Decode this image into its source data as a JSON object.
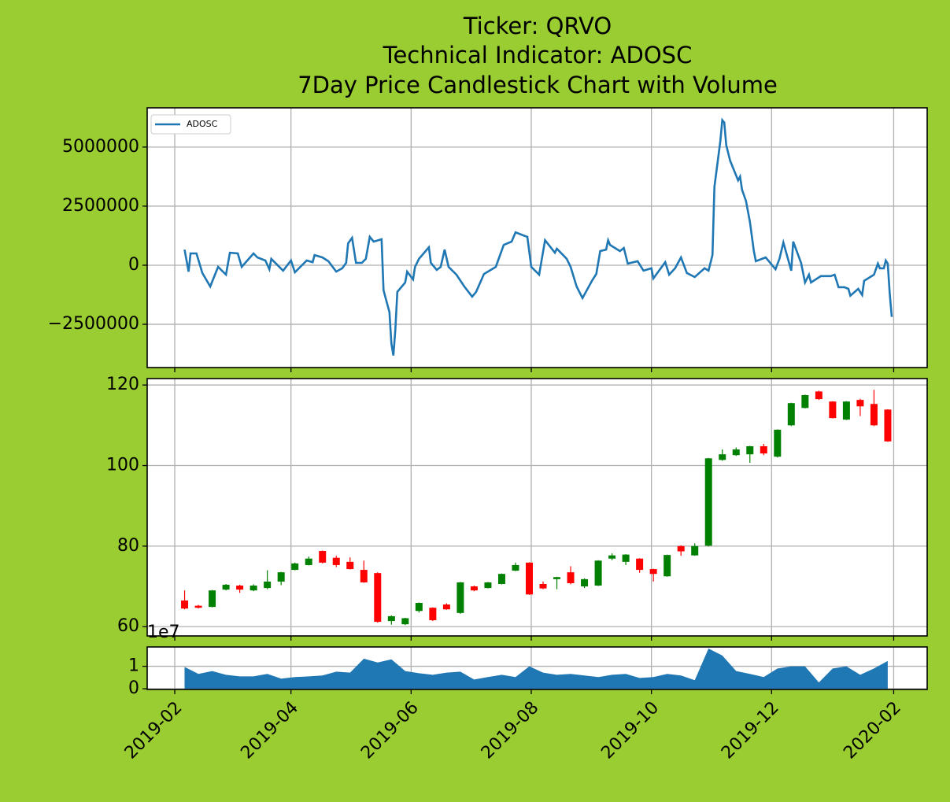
{
  "chart_data": [
    {
      "type": "line",
      "title": [
        "Ticker: QRVO",
        "Technical Indicator: ADOSC",
        "7Day Price Candlestick Chart with Volume"
      ],
      "legend": "upper left",
      "grid": true,
      "ylim": [
        -4330000,
        6660000
      ],
      "yticks": [
        {
          "value": -2500000,
          "label": "−2500000"
        },
        0,
        2500000,
        5000000
      ],
      "x": [
        "2019-02-06",
        "2019-02-08",
        "2019-02-09",
        "2019-02-12",
        "2019-02-15",
        "2019-02-19",
        "2019-02-23",
        "2019-02-27",
        "2019-03-01",
        "2019-03-05",
        "2019-03-07",
        "2019-03-13",
        "2019-03-15",
        "2019-03-19",
        "2019-03-21",
        "2019-03-22",
        "2019-03-28",
        "2019-04-01",
        "2019-04-03",
        "2019-04-09",
        "2019-04-12",
        "2019-04-13",
        "2019-04-17",
        "2019-04-20",
        "2019-04-24",
        "2019-04-27",
        "2019-04-29",
        "2019-04-30",
        "2019-05-02",
        "2019-05-04",
        "2019-05-07",
        "2019-05-09",
        "2019-05-11",
        "2019-05-13",
        "2019-05-17",
        "2019-05-18",
        "2019-05-21",
        "2019-05-22",
        "2019-05-23",
        "2019-05-24",
        "2019-05-25",
        "2019-05-29",
        "2019-05-30",
        "2019-06-02",
        "2019-06-03",
        "2019-06-05",
        "2019-06-10",
        "2019-06-11",
        "2019-06-14",
        "2019-06-16",
        "2019-06-18",
        "2019-06-20",
        "2019-06-24",
        "2019-06-28",
        "2019-07-02",
        "2019-07-04",
        "2019-07-08",
        "2019-07-14",
        "2019-07-18",
        "2019-07-22",
        "2019-07-24",
        "2019-07-28",
        "2019-07-30",
        "2019-08-01",
        "2019-08-05",
        "2019-08-08",
        "2019-08-13",
        "2019-08-14",
        "2019-08-19",
        "2019-08-21",
        "2019-08-24",
        "2019-08-27",
        "2019-09-01",
        "2019-09-03",
        "2019-09-05",
        "2019-09-08",
        "2019-09-09",
        "2019-09-10",
        "2019-09-15",
        "2019-09-17",
        "2019-09-19",
        "2019-09-24",
        "2019-09-27",
        "2019-10-01",
        "2019-10-02",
        "2019-10-08",
        "2019-10-10",
        "2019-10-13",
        "2019-10-16",
        "2019-10-19",
        "2019-10-23",
        "2019-10-28",
        "2019-10-30",
        "2019-11-01",
        "2019-11-02",
        "2019-11-05",
        "2019-11-06",
        "2019-11-07",
        "2019-11-08",
        "2019-11-10",
        "2019-11-14",
        "2019-11-15",
        "2019-11-16",
        "2019-11-18",
        "2019-11-20",
        "2019-11-22",
        "2019-11-23",
        "2019-11-28",
        "2019-12-03",
        "2019-12-05",
        "2019-12-07",
        "2019-12-11",
        "2019-12-12",
        "2019-12-16",
        "2019-12-18",
        "2019-12-20",
        "2019-12-21",
        "2019-12-26",
        "2019-12-31",
        "2020-01-02",
        "2020-01-04",
        "2020-01-07",
        "2020-01-09",
        "2020-01-10",
        "2020-01-14",
        "2020-01-16",
        "2020-01-17",
        "2020-01-22",
        "2020-01-24",
        "2020-01-25",
        "2020-01-27",
        "2020-01-28",
        "2020-01-29",
        "2020-01-30",
        "2020-01-31"
      ],
      "series": [
        {
          "name": "ADOSC",
          "color": "#1f77b4",
          "values": [
            660000,
            -270000,
            500000,
            500000,
            -330000,
            -900000,
            -70000,
            -400000,
            530000,
            500000,
            -70000,
            500000,
            330000,
            200000,
            -170000,
            270000,
            -230000,
            200000,
            -300000,
            200000,
            130000,
            430000,
            330000,
            170000,
            -270000,
            -130000,
            100000,
            930000,
            1160000,
            100000,
            100000,
            270000,
            1200000,
            1000000,
            1100000,
            -1060000,
            -1990000,
            -3320000,
            -3820000,
            -2720000,
            -1130000,
            -730000,
            -270000,
            -600000,
            -70000,
            270000,
            760000,
            100000,
            -200000,
            -70000,
            660000,
            -70000,
            -400000,
            -900000,
            -1330000,
            -1130000,
            -370000,
            -70000,
            860000,
            1000000,
            1390000,
            1260000,
            1200000,
            -70000,
            -400000,
            1060000,
            530000,
            700000,
            270000,
            -70000,
            -900000,
            -1390000,
            -630000,
            -370000,
            600000,
            660000,
            1060000,
            860000,
            600000,
            730000,
            70000,
            170000,
            -230000,
            -130000,
            -560000,
            130000,
            -400000,
            -130000,
            330000,
            -330000,
            -500000,
            -130000,
            -230000,
            430000,
            3320000,
            5250000,
            6140000,
            6040000,
            5080000,
            4420000,
            3590000,
            3750000,
            3190000,
            2720000,
            1830000,
            600000,
            170000,
            330000,
            -170000,
            270000,
            960000,
            -230000,
            1000000,
            100000,
            -730000,
            -400000,
            -730000,
            -460000,
            -460000,
            -400000,
            -930000,
            -930000,
            -1000000,
            -1290000,
            -1000000,
            -1260000,
            -660000,
            -400000,
            70000,
            -130000,
            -130000,
            200000,
            70000,
            -1230000,
            -2190000
          ]
        }
      ]
    },
    {
      "type": "candlestick",
      "grid": true,
      "ylim": [
        57.7,
        121.6
      ],
      "yticks": [
        60,
        80,
        100,
        120
      ],
      "up_color": "#008000",
      "down_color": "#ff0000",
      "x": [
        "2019-02-06",
        "2019-02-13",
        "2019-02-20",
        "2019-02-27",
        "2019-03-06",
        "2019-03-13",
        "2019-03-20",
        "2019-03-27",
        "2019-04-03",
        "2019-04-10",
        "2019-04-17",
        "2019-04-24",
        "2019-05-01",
        "2019-05-08",
        "2019-05-15",
        "2019-05-22",
        "2019-05-29",
        "2019-06-05",
        "2019-06-12",
        "2019-06-19",
        "2019-06-26",
        "2019-07-03",
        "2019-07-10",
        "2019-07-17",
        "2019-07-24",
        "2019-07-31",
        "2019-08-07",
        "2019-08-14",
        "2019-08-21",
        "2019-08-28",
        "2019-09-04",
        "2019-09-11",
        "2019-09-18",
        "2019-09-25",
        "2019-10-02",
        "2019-10-09",
        "2019-10-16",
        "2019-10-23",
        "2019-10-30",
        "2019-11-06",
        "2019-11-13",
        "2019-11-20",
        "2019-11-27",
        "2019-12-04",
        "2019-12-11",
        "2019-12-18",
        "2019-12-25",
        "2020-01-01",
        "2020-01-08",
        "2020-01-15",
        "2020-01-22",
        "2020-01-29"
      ],
      "open": [
        66.5,
        65.2,
        64.9,
        69.2,
        70.2,
        69.0,
        69.6,
        71.2,
        74.1,
        75.3,
        78.8,
        77.1,
        76.1,
        74.1,
        73.3,
        61.4,
        60.6,
        63.9,
        64.7,
        65.5,
        63.4,
        70.0,
        69.6,
        70.6,
        73.9,
        75.9,
        70.6,
        71.8,
        73.5,
        70.0,
        70.2,
        76.9,
        76.1,
        76.9,
        74.3,
        72.5,
        80.0,
        77.7,
        80.1,
        101.4,
        102.6,
        102.8,
        104.8,
        102.2,
        110.0,
        114.3,
        118.4,
        115.9,
        111.4,
        116.3,
        115.3,
        113.9
      ],
      "high": [
        69.0,
        65.4,
        69.1,
        70.6,
        70.4,
        70.5,
        74.0,
        73.6,
        75.9,
        77.4,
        78.9,
        77.6,
        77.2,
        76.4,
        73.5,
        62.8,
        62.2,
        66.0,
        64.8,
        65.8,
        71.1,
        70.2,
        71.1,
        73.2,
        75.9,
        76.0,
        71.2,
        72.4,
        75.0,
        72.0,
        76.5,
        78.2,
        78.0,
        77.0,
        74.4,
        77.9,
        80.2,
        80.7,
        101.9,
        104.0,
        104.5,
        104.9,
        105.4,
        109.0,
        115.6,
        117.6,
        118.6,
        116.0,
        116.0,
        116.6,
        118.8,
        114.0
      ],
      "low": [
        64.3,
        64.5,
        64.8,
        69.0,
        68.4,
        68.8,
        69.3,
        70.3,
        74.0,
        75.2,
        75.7,
        74.8,
        74.2,
        70.9,
        61.0,
        60.5,
        60.4,
        63.5,
        61.4,
        64.2,
        63.2,
        68.8,
        69.5,
        70.5,
        73.8,
        67.9,
        69.3,
        69.3,
        70.5,
        69.6,
        70.1,
        76.5,
        75.3,
        73.4,
        71.2,
        72.4,
        77.6,
        77.6,
        79.9,
        101.2,
        102.4,
        100.7,
        102.6,
        102.0,
        109.8,
        114.2,
        116.3,
        111.7,
        111.3,
        112.3,
        109.8,
        105.9
      ],
      "close": [
        64.5,
        64.7,
        69.0,
        70.4,
        69.2,
        70.2,
        71.2,
        73.5,
        75.7,
        76.9,
        75.9,
        75.3,
        74.3,
        71.0,
        61.2,
        62.6,
        62.1,
        65.9,
        61.6,
        64.3,
        71.0,
        69.0,
        71.0,
        73.1,
        75.3,
        68.0,
        69.5,
        72.3,
        70.8,
        71.8,
        76.4,
        77.7,
        77.9,
        74.1,
        73.1,
        77.8,
        78.7,
        80.0,
        101.8,
        102.8,
        104.0,
        104.8,
        103.0,
        108.9,
        115.5,
        117.5,
        116.5,
        111.8,
        115.9,
        114.7,
        110.0,
        106.0
      ]
    },
    {
      "type": "area",
      "grid": true,
      "color": "#1f77b4",
      "ylim": [
        -300000,
        18600000
      ],
      "yticks": [
        0,
        {
          "value": 10000000,
          "label": "1"
        }
      ],
      "y_offset_label": "1e7",
      "xlim": [
        "2019-01-18",
        "2020-02-18"
      ],
      "xticks": [
        "2019-02",
        "2019-04",
        "2019-06",
        "2019-08",
        "2019-10",
        "2019-12",
        "2020-02"
      ],
      "x": [
        "2019-02-06",
        "2019-02-13",
        "2019-02-20",
        "2019-02-27",
        "2019-03-06",
        "2019-03-13",
        "2019-03-20",
        "2019-03-27",
        "2019-04-03",
        "2019-04-10",
        "2019-04-17",
        "2019-04-24",
        "2019-05-01",
        "2019-05-08",
        "2019-05-15",
        "2019-05-22",
        "2019-05-29",
        "2019-06-05",
        "2019-06-12",
        "2019-06-19",
        "2019-06-26",
        "2019-07-03",
        "2019-07-10",
        "2019-07-17",
        "2019-07-24",
        "2019-07-31",
        "2019-08-07",
        "2019-08-14",
        "2019-08-21",
        "2019-08-28",
        "2019-09-04",
        "2019-09-11",
        "2019-09-18",
        "2019-09-25",
        "2019-10-02",
        "2019-10-09",
        "2019-10-16",
        "2019-10-23",
        "2019-10-30",
        "2019-11-06",
        "2019-11-13",
        "2019-11-20",
        "2019-11-27",
        "2019-12-04",
        "2019-12-11",
        "2019-12-18",
        "2019-12-25",
        "2020-01-01",
        "2020-01-08",
        "2020-01-15",
        "2020-01-22",
        "2020-01-29"
      ],
      "values": [
        9700000,
        6600000,
        7900000,
        6200000,
        5500000,
        5500000,
        6600000,
        4500000,
        5200000,
        5500000,
        5900000,
        7600000,
        7200000,
        13400000,
        11700000,
        13100000,
        7900000,
        6900000,
        6200000,
        7200000,
        7600000,
        4100000,
        5200000,
        6200000,
        5200000,
        10000000,
        7200000,
        6200000,
        6600000,
        5900000,
        5200000,
        6200000,
        6600000,
        4800000,
        5200000,
        6600000,
        5900000,
        3800000,
        17900000,
        14800000,
        7900000,
        6600000,
        5200000,
        9000000,
        10000000,
        10000000,
        2800000,
        9000000,
        10000000,
        6200000,
        9000000,
        12400000
      ]
    }
  ]
}
